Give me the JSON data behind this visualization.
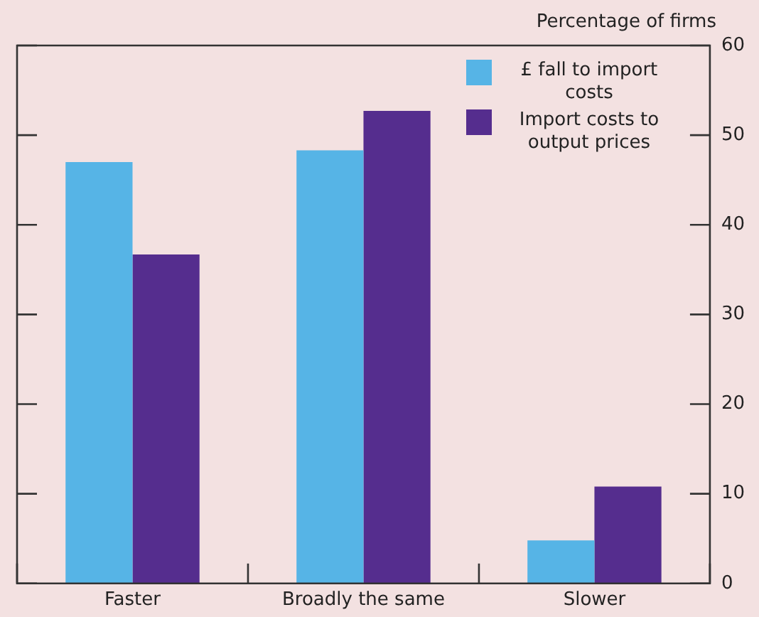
{
  "chart_data": {
    "type": "bar",
    "ylabel": "Percentage of firms",
    "categories": [
      "Faster",
      "Broadly the same",
      "Slower"
    ],
    "series": [
      {
        "name": "£ fall to import costs",
        "color": "#56b4e6",
        "values": [
          47,
          48.3,
          4.8
        ]
      },
      {
        "name": "Import costs to output prices",
        "color": "#552d8e",
        "values": [
          36.7,
          52.7,
          10.8
        ]
      }
    ],
    "ylim": [
      0,
      60
    ],
    "yticks": [
      0,
      10,
      20,
      30,
      40,
      50,
      60
    ],
    "grid": false,
    "legend": "top right"
  }
}
